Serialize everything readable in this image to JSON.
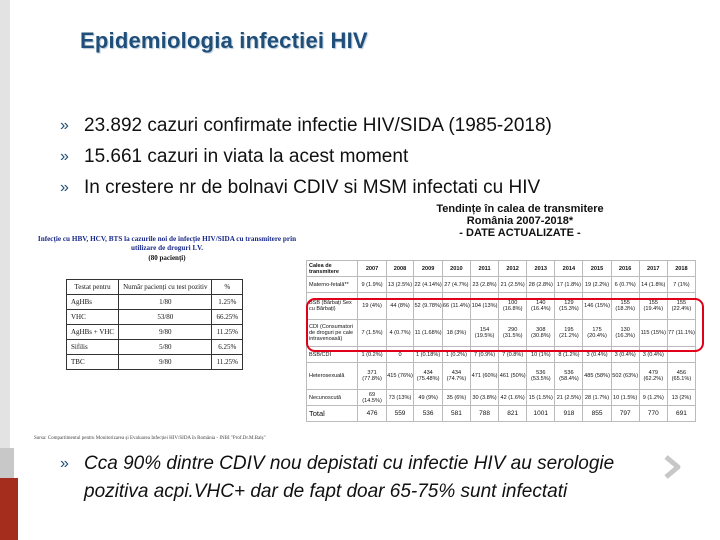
{
  "slide": {
    "title": "Epidemiologia infectiei HIV",
    "bullets": [
      "23.892 cazuri confirmate infectie HIV/SIDA (1985-2018)",
      "15.661 cazuri in viata la acest moment",
      "In crestere nr de bolnavi CDIV si MSM infectati cu HIV"
    ],
    "bottom_bullet": {
      "line1": "Cca 90% dintre CDIV nou depistati cu infectie HIV au serologie",
      "line2": "pozitiva acpi.VHC+ dar de fapt doar 65-75% sunt infectati"
    },
    "bullet_mark": "»",
    "colors": {
      "title": "#1f4e79",
      "highlight": "#e0001a",
      "accent_bar": "#a52d1e"
    }
  },
  "left_image": {
    "heading": "Infecție cu HBV, HCV, BTS la cazurile noi de infecție HIV/SIDA cu transmitere prin utilizare de droguri I.V.",
    "subheading": "(80 pacienți)",
    "columns": [
      "Testat pentru",
      "Număr pacienți cu test pozitiv",
      "%"
    ],
    "rows": [
      [
        "AgHBs",
        "1/80",
        "1.25%"
      ],
      [
        "VHC",
        "53/80",
        "66.25%"
      ],
      [
        "AgHBs + VHC",
        "9/80",
        "11.25%"
      ],
      [
        "Sifilis",
        "5/80",
        "6.25%"
      ],
      [
        "TBC",
        "9/80",
        "11.25%"
      ]
    ],
    "source": "Sursa: Compartimentul pentru Monitorizarea și Evaluarea Infecției HIV/SIDA în România - INBI \"Prof.Dr.M.Balș\""
  },
  "right_image": {
    "title_lines": [
      "Tendințe în calea de transmitere",
      "România 2007-2018*",
      "- DATE ACTUALIZATE -"
    ],
    "header": [
      "Calea de transmitere",
      "2007",
      "2008",
      "2009",
      "2010",
      "2011",
      "2012",
      "2013",
      "2014",
      "2015",
      "2016",
      "2017",
      "2018"
    ],
    "rows": [
      [
        "Materno-fetală**",
        "9 (1.9%)",
        "13 (2.5%)",
        "22 (4.14%)",
        "27 (4.7%)",
        "23 (2.8%)",
        "21 (2.5%)",
        "28 (2.8%)",
        "17 (1.8%)",
        "19 (2.2%)",
        "6 (0.7%)",
        "14 (1.8%)",
        "7 (1%)"
      ],
      [
        "BSB (Bărbați Sex cu Bărbați)",
        "19 (4%)",
        "44 (8%)",
        "52 (9.78%)",
        "66 (11.4%)",
        "104 (13%)",
        "100 (16.8%)",
        "140 (16.4%)",
        "129 (15.3%)",
        "146 (15%)",
        "155 (18.3%)",
        "155 (19.4%)",
        "155 (22.4%)"
      ],
      [
        "CDI (Consumatori de droguri pe cale intravenoasă)",
        "7 (1.5%)",
        "4 (0.7%)",
        "11 (1.68%)",
        "18 (3%)",
        "154 (19.5%)",
        "290 (31.5%)",
        "308 (30.8%)",
        "195 (21.2%)",
        "175 (20.4%)",
        "130 (16.3%)",
        "115 (15%)",
        "77 (11.1%)"
      ],
      [
        "BSB/CDI",
        "1 (0.2%)",
        "0",
        "1 (0.18%)",
        "1 (0.2%)",
        "7 (0.9%)",
        "7 (0.8%)",
        "10 (1%)",
        "8 (1.2%)",
        "3 (0.4%)",
        "3 (0.4%)",
        "3 (0.4%)",
        ""
      ],
      [
        "Heterosexuală",
        "371 (77.8%)",
        "415 (76%)",
        "434 (75.48%)",
        "434 (74.7%)",
        "471 (60%)",
        "461 (50%)",
        "536 (53.5%)",
        "536 (58.4%)",
        "485 (58%)",
        "502 (63%)",
        "479 (62.2%)",
        "456 (65.1%)"
      ],
      [
        "Necunoscută",
        "69 (14.5%)",
        "73 (13%)",
        "49 (9%)",
        "35 (6%)",
        "30 (3.8%)",
        "42 (1.6%)",
        "15 (1.5%)",
        "21 (2.5%)",
        "28 (1.7%)",
        "10 (1.5%)",
        "9 (1.2%)",
        "13 (2%)"
      ],
      [
        "Total",
        "476",
        "559",
        "536",
        "581",
        "788",
        "821",
        "1001",
        "918",
        "855",
        "797",
        "770",
        "691"
      ]
    ]
  }
}
